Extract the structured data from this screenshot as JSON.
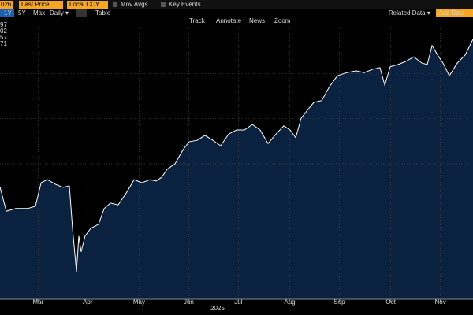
{
  "toolbar": {
    "security": "026",
    "field": "Last Price",
    "currency": "Local CCY",
    "moving_averages": "Mov Avgs",
    "events": "Key Events",
    "ranges": [
      "1Y",
      "5Y",
      "Max"
    ],
    "frequency": "Daily ▾",
    "table": "Table",
    "related": "+ Related Data ▾",
    "add": "Add Data",
    "tools": [
      "Track",
      "Annotate",
      "News",
      "Zoom"
    ]
  },
  "legend_values": [
    "97",
    "02",
    "57",
    "71"
  ],
  "chart_data": {
    "type": "area",
    "color": "#ffffff",
    "fill": "#0a2140",
    "grid": true,
    "x": [
      0,
      3.8,
      9.5,
      16.7,
      21.4,
      24.8,
      28.6,
      33.3,
      38.1,
      41.9,
      43.8,
      46.2,
      47.6,
      49,
      51.4,
      54.8,
      59.5,
      62.9,
      66.7,
      71.4,
      76.2,
      81,
      85.7,
      90.5,
      94.3,
      97.6,
      101,
      105.7,
      110.5,
      114.3,
      119,
      123.8,
      128.6,
      133.3,
      138.1,
      142.9,
      147.6,
      152.4,
      157.1,
      161.9,
      166.7,
      171.4,
      175.2,
      178.6,
      181.9,
      185.7,
      189.5,
      194.3,
      199,
      203.8,
      209.5,
      215.2,
      220,
      224.8,
      229.5,
      232.4,
      235.7,
      240.5,
      245.2,
      250,
      254.8,
      258.1,
      261,
      264.3,
      267.6,
      271.4,
      276.2,
      281,
      285.7
    ],
    "values": [
      2.49,
      1.95,
      2.01,
      2.01,
      2.06,
      2.58,
      2.65,
      2.55,
      2.48,
      2.51,
      1.57,
      0.61,
      1.4,
      1.05,
      1.4,
      1.57,
      1.66,
      2.01,
      2.13,
      2.09,
      2.35,
      2.65,
      2.58,
      2.65,
      2.62,
      2.7,
      2.88,
      3,
      3.31,
      3.49,
      3.52,
      3.63,
      3.52,
      3.4,
      3.66,
      3.75,
      3.75,
      3.87,
      3.75,
      3.45,
      3.66,
      3.84,
      3.75,
      3.58,
      4.01,
      4.19,
      4.36,
      4.4,
      4.71,
      4.95,
      5.02,
      5.06,
      5.02,
      5.09,
      5.13,
      4.74,
      5.15,
      5.2,
      5.27,
      5.37,
      5.23,
      5.2,
      5.62,
      5.41,
      5.23,
      4.95,
      5.23,
      5.41,
      5.76
    ],
    "xlim": [
      0,
      285.7
    ],
    "ylim": [
      0,
      6
    ],
    "yticks": [
      1,
      2,
      3,
      4,
      5
    ],
    "xticks": [
      {
        "value": 23,
        "label": "Mar"
      },
      {
        "value": 53,
        "label": "Apr"
      },
      {
        "value": 84,
        "label": "May"
      },
      {
        "value": 114,
        "label": "Jun"
      },
      {
        "value": 144,
        "label": "Jul"
      },
      {
        "value": 175,
        "label": "Aug"
      },
      {
        "value": 205,
        "label": "Sep"
      },
      {
        "value": 236,
        "label": "Oct"
      },
      {
        "value": 266,
        "label": "Nov"
      }
    ],
    "xlabel": "2025"
  }
}
